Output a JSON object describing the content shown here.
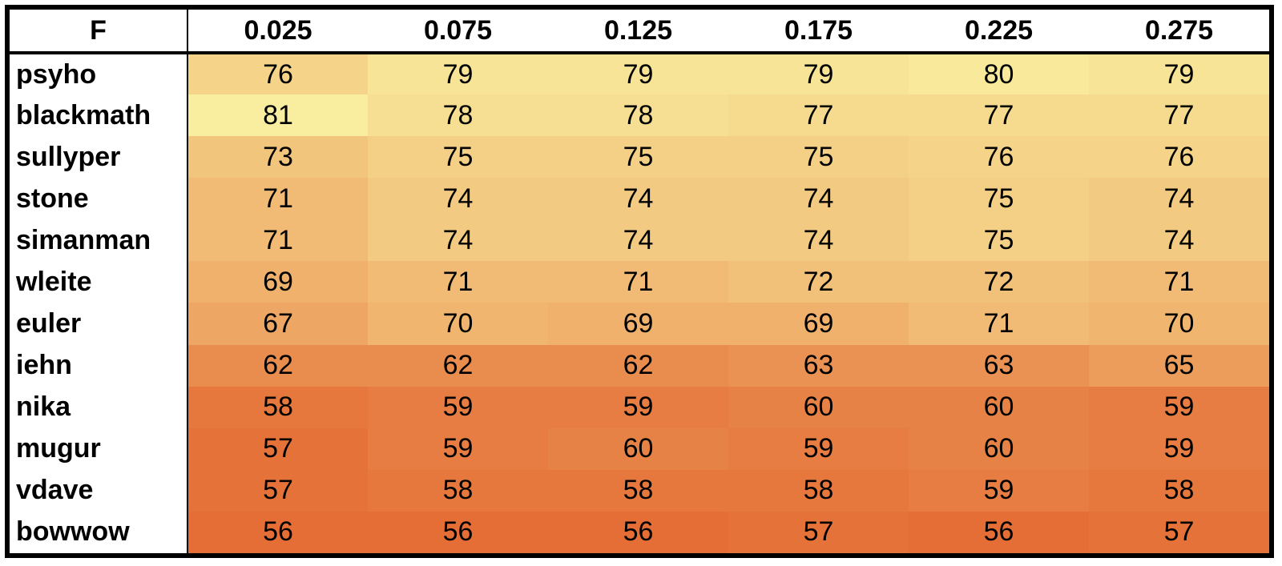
{
  "chart_data": {
    "type": "heatmap",
    "corner_label": "F",
    "columns": [
      "0.025",
      "0.075",
      "0.125",
      "0.175",
      "0.225",
      "0.275"
    ],
    "rows": [
      {
        "name": "psyho",
        "values": [
          76,
          79,
          79,
          79,
          80,
          79
        ]
      },
      {
        "name": "blackmath",
        "values": [
          81,
          78,
          78,
          77,
          77,
          77
        ]
      },
      {
        "name": "sullyper",
        "values": [
          73,
          75,
          75,
          75,
          76,
          76
        ]
      },
      {
        "name": "stone",
        "values": [
          71,
          74,
          74,
          74,
          75,
          74
        ]
      },
      {
        "name": "simanman",
        "values": [
          71,
          74,
          74,
          74,
          75,
          74
        ]
      },
      {
        "name": "wleite",
        "values": [
          69,
          71,
          71,
          72,
          72,
          71
        ]
      },
      {
        "name": "euler",
        "values": [
          67,
          70,
          69,
          69,
          71,
          70
        ]
      },
      {
        "name": "iehn",
        "values": [
          62,
          62,
          62,
          63,
          63,
          65
        ]
      },
      {
        "name": "nika",
        "values": [
          58,
          59,
          59,
          60,
          60,
          59
        ]
      },
      {
        "name": "mugur",
        "values": [
          57,
          59,
          60,
          59,
          60,
          59
        ]
      },
      {
        "name": "vdave",
        "values": [
          57,
          58,
          58,
          58,
          59,
          58
        ]
      },
      {
        "name": "bowwow",
        "values": [
          56,
          56,
          56,
          57,
          56,
          57
        ]
      }
    ],
    "color_scale": {
      "min_color": "#e46e35",
      "max_color": "#f9ee9f"
    }
  }
}
